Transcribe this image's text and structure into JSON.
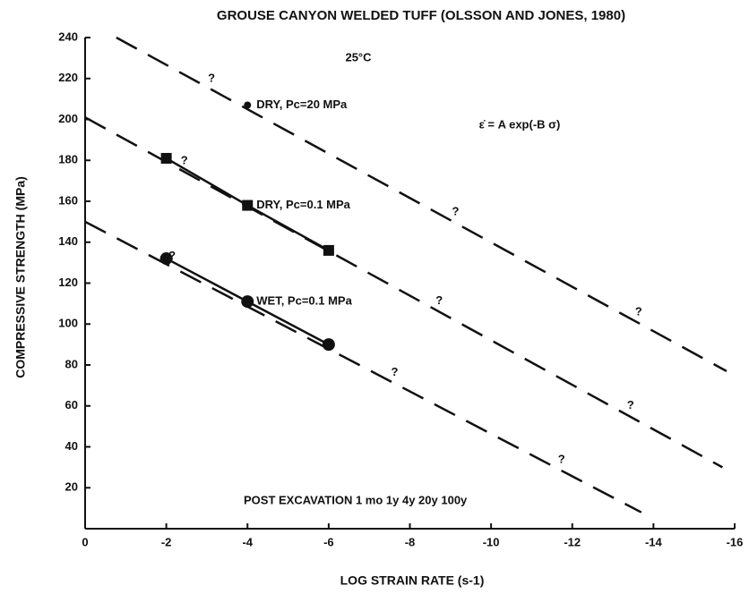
{
  "chart_data": {
    "type": "line",
    "title": "GROUSE CANYON WELDED TUFF (OLSSON AND JONES, 1980)",
    "x_label": "LOG STRAIN RATE (s-1)",
    "y_label": "COMPRESSIVE STRENGTH (MPa)",
    "xlim": [
      0,
      -16
    ],
    "ylim": [
      0,
      240
    ],
    "xticks": [
      0,
      -2,
      -4,
      -6,
      -8,
      -10,
      -12,
      -14,
      -16
    ],
    "yticks": [
      20,
      40,
      60,
      80,
      100,
      120,
      140,
      160,
      180,
      200,
      220,
      240
    ],
    "color": "#111111",
    "uncertain_label": "?",
    "annotations": [
      "25°C",
      "ε̇ = A exp(-B σ)",
      "POST EXCAVATION   1 mo   1y   4y   20y   100y"
    ],
    "series": [
      {
        "name": "DRY, Pc=20 MPa",
        "marker": "dot",
        "x": [
          -4
        ],
        "values": [
          207
        ],
        "fit": {
          "x": [
            -0.77,
            -15.8
          ],
          "values": [
            240,
            77
          ]
        }
      },
      {
        "name": "DRY, Pc=0.1 MPa",
        "marker": "square",
        "x": [
          -2,
          -4,
          -6
        ],
        "values": [
          181,
          158,
          136
        ],
        "fit": {
          "x": [
            0,
            -15.7
          ],
          "values": [
            201,
            30
          ]
        }
      },
      {
        "name": "WET, Pc=0.1 MPa",
        "marker": "circle",
        "x": [
          -2,
          -4,
          -6
        ],
        "values": [
          132,
          111,
          90
        ],
        "fit": {
          "x": [
            0,
            -13.7
          ],
          "values": [
            150,
            8
          ]
        }
      }
    ]
  }
}
